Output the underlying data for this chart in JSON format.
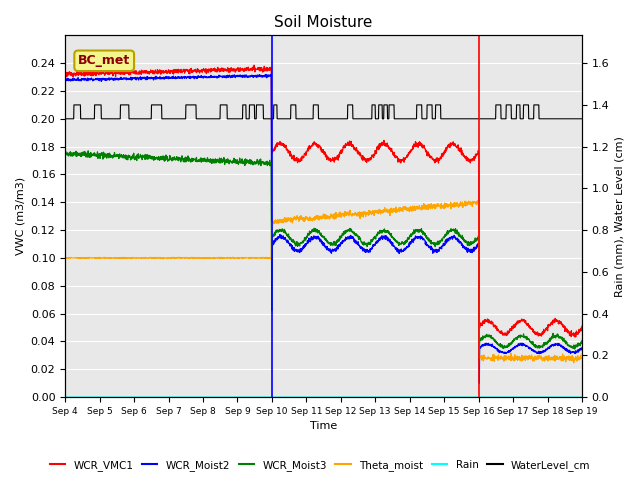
{
  "title": "Soil Moisture",
  "xlabel": "Time",
  "ylabel_left": "VWC (m3/m3)",
  "ylabel_right": "Rain (mm), Water Level (cm)",
  "ylim_left": [
    0.0,
    0.26
  ],
  "ylim_right": [
    0.0,
    1.7333
  ],
  "annotation_label": "BC_met",
  "legend_entries": [
    "WCR_VMC1",
    "WCR_Moist2",
    "WCR_Moist3",
    "Theta_moist",
    "Rain",
    "WaterLevel_cm"
  ],
  "legend_colors": [
    "red",
    "blue",
    "green",
    "orange",
    "cyan",
    "black"
  ],
  "background_color": "#e8e8e8",
  "grid_color": "white",
  "xtick_labels": [
    "Sep 4",
    "Sep 5",
    "Sep 6",
    "Sep 7",
    "Sep 8",
    "Sep 9",
    "Sep 10",
    "Sep 11",
    "Sep 12",
    "Sep 13",
    "Sep 14",
    "Sep 15",
    "Sep 16",
    "Sep 17",
    "Sep 18",
    "Sep 19"
  ],
  "yticks_left": [
    0.0,
    0.02,
    0.04,
    0.06,
    0.08,
    0.1,
    0.12,
    0.14,
    0.16,
    0.18,
    0.2,
    0.22,
    0.24
  ],
  "yticks_right": [
    0.0,
    0.2,
    0.4,
    0.6,
    0.8,
    1.0,
    1.2,
    1.4,
    1.6
  ]
}
